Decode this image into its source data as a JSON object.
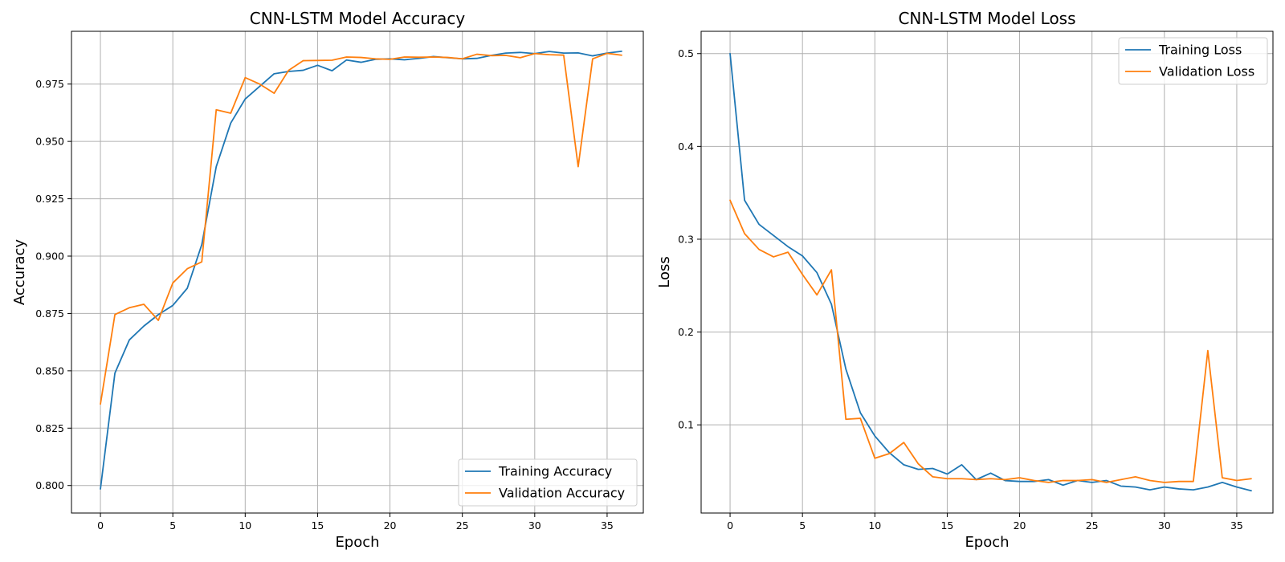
{
  "chart_data": [
    {
      "type": "line",
      "title": "CNN-LSTM Model Accuracy",
      "xlabel": "Epoch",
      "ylabel": "Accuracy",
      "xlim": [
        -2,
        37.5
      ],
      "ylim": [
        0.788,
        0.998
      ],
      "xticks": [
        0,
        5,
        10,
        15,
        20,
        25,
        30,
        35
      ],
      "yticks": [
        0.8,
        0.825,
        0.85,
        0.875,
        0.9,
        0.925,
        0.95,
        0.975
      ],
      "ytick_decimals": 3,
      "grid": true,
      "legend_position": "lower-right",
      "x": [
        0,
        1,
        2,
        3,
        4,
        5,
        6,
        7,
        8,
        9,
        10,
        11,
        12,
        13,
        14,
        15,
        16,
        17,
        18,
        19,
        20,
        21,
        22,
        23,
        24,
        25,
        26,
        27,
        28,
        29,
        30,
        31,
        32,
        33,
        34,
        35,
        36
      ],
      "series": [
        {
          "name": "Training Accuracy",
          "color": "#1f77b4",
          "values": [
            0.7985,
            0.849,
            0.8635,
            0.8695,
            0.8745,
            0.8785,
            0.886,
            0.905,
            0.939,
            0.958,
            0.9685,
            0.974,
            0.9795,
            0.9805,
            0.981,
            0.9832,
            0.9808,
            0.9855,
            0.9845,
            0.9858,
            0.986,
            0.9856,
            0.9862,
            0.987,
            0.9865,
            0.986,
            0.9862,
            0.9875,
            0.9885,
            0.9888,
            0.9883,
            0.9892,
            0.9885,
            0.9886,
            0.9873,
            0.9885,
            0.9893
          ]
        },
        {
          "name": "Validation Accuracy",
          "color": "#ff7f0e",
          "values": [
            0.8355,
            0.8745,
            0.8775,
            0.879,
            0.872,
            0.8883,
            0.8945,
            0.8975,
            0.9638,
            0.9623,
            0.9778,
            0.975,
            0.971,
            0.981,
            0.9852,
            0.9853,
            0.9854,
            0.9868,
            0.9866,
            0.986,
            0.9858,
            0.9868,
            0.9867,
            0.9868,
            0.9866,
            0.986,
            0.988,
            0.9874,
            0.9875,
            0.9865,
            0.9883,
            0.9878,
            0.9876,
            0.939,
            0.986,
            0.9884,
            0.9876
          ]
        }
      ]
    },
    {
      "type": "line",
      "title": "CNN-LSTM Model Loss",
      "xlabel": "Epoch",
      "ylabel": "Loss",
      "xlim": [
        -2,
        37.5
      ],
      "ylim": [
        0.005,
        0.524
      ],
      "xticks": [
        0,
        5,
        10,
        15,
        20,
        25,
        30,
        35
      ],
      "yticks": [
        0.1,
        0.2,
        0.3,
        0.4,
        0.5
      ],
      "ytick_decimals": 1,
      "grid": true,
      "legend_position": "upper-right",
      "x": [
        0,
        1,
        2,
        3,
        4,
        5,
        6,
        7,
        8,
        9,
        10,
        11,
        12,
        13,
        14,
        15,
        16,
        17,
        18,
        19,
        20,
        21,
        22,
        23,
        24,
        25,
        26,
        27,
        28,
        29,
        30,
        31,
        32,
        33,
        34,
        35,
        36
      ],
      "series": [
        {
          "name": "Training Loss",
          "color": "#1f77b4",
          "values": [
            0.5,
            0.342,
            0.316,
            0.304,
            0.292,
            0.282,
            0.264,
            0.23,
            0.16,
            0.113,
            0.088,
            0.07,
            0.057,
            0.052,
            0.053,
            0.047,
            0.057,
            0.041,
            0.048,
            0.04,
            0.039,
            0.039,
            0.041,
            0.035,
            0.04,
            0.038,
            0.04,
            0.034,
            0.033,
            0.03,
            0.033,
            0.031,
            0.03,
            0.033,
            0.038,
            0.033,
            0.029
          ]
        },
        {
          "name": "Validation Loss",
          "color": "#ff7f0e",
          "values": [
            0.342,
            0.306,
            0.289,
            0.281,
            0.286,
            0.262,
            0.24,
            0.267,
            0.106,
            0.107,
            0.064,
            0.069,
            0.081,
            0.058,
            0.044,
            0.042,
            0.042,
            0.041,
            0.042,
            0.041,
            0.043,
            0.04,
            0.038,
            0.04,
            0.04,
            0.041,
            0.038,
            0.041,
            0.044,
            0.04,
            0.038,
            0.039,
            0.039,
            0.18,
            0.043,
            0.04,
            0.042
          ]
        }
      ]
    }
  ]
}
